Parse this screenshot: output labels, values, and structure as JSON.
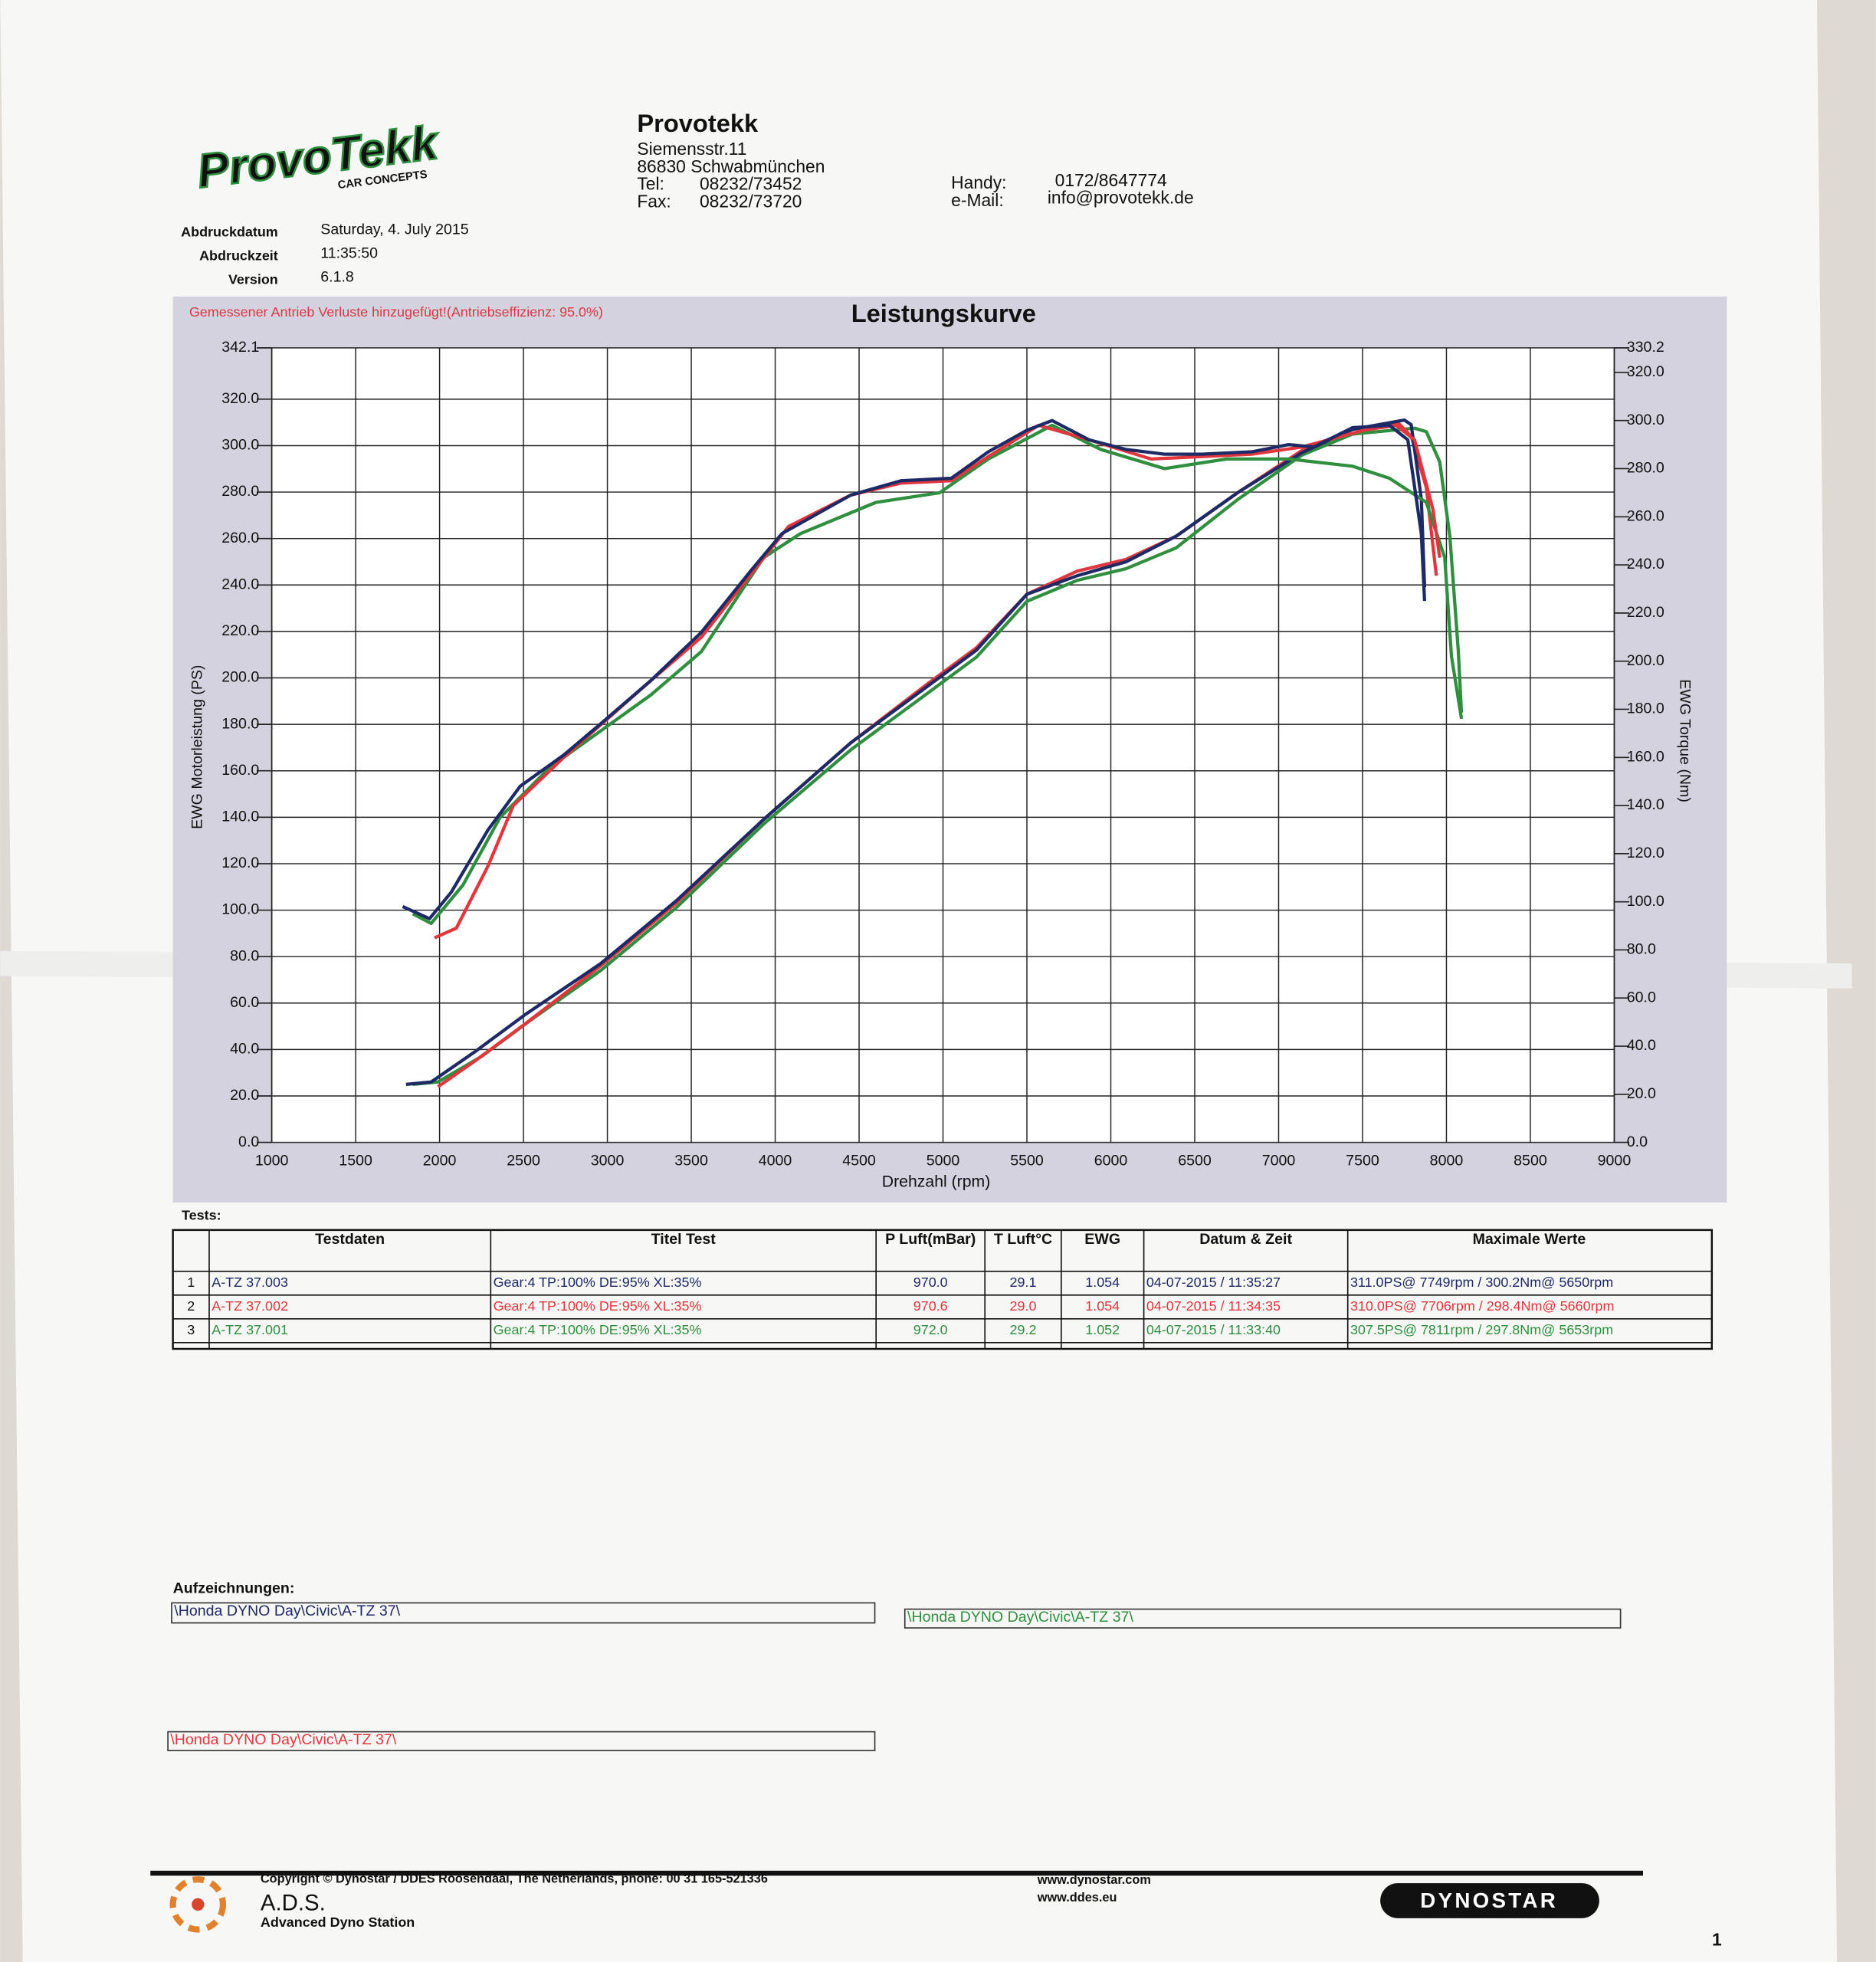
{
  "logo": {
    "text": "ProvoTekk",
    "subtitle": "CAR CONCEPTS"
  },
  "header": {
    "company": "Provotekk",
    "street": "Siemensstr.11",
    "city": "86830 Schwabmünchen",
    "tel_label": "Tel:",
    "tel": "08232/73452",
    "fax_label": "Fax:",
    "fax": "08232/73720",
    "handy_label": "Handy:",
    "handy": "0172/8647774",
    "email_label": "e-Mail:",
    "email": "info@provotekk.de"
  },
  "meta": [
    {
      "label": "Abdruckdatum",
      "value": "Saturday, 4. July 2015"
    },
    {
      "label": "Abdruckzeit",
      "value": "11:35:50"
    },
    {
      "label": "Version",
      "value": "6.1.8"
    }
  ],
  "chart_data": {
    "type": "line",
    "title": "Leistungskurve",
    "subtitle": "Gemessener Antrieb Verluste hinzugefügt!(Antriebseffizienz: 95.0%)",
    "x_label": "Drehzahl (rpm)",
    "y_label": "EWG Motorleistung (PS)",
    "y2_label": "EWG Torque (Nm)",
    "grid": true,
    "xlim": [
      1000,
      9000
    ],
    "xticks": [
      1000,
      1500,
      2000,
      2500,
      3000,
      3500,
      4000,
      4500,
      5000,
      5500,
      6000,
      6500,
      7000,
      7500,
      8000,
      8500,
      9000
    ],
    "ylim": [
      0,
      342.1
    ],
    "yticks": [
      {
        "value": 0,
        "label": "0.0"
      },
      {
        "value": 20,
        "label": "20.0"
      },
      {
        "value": 40,
        "label": "40.0"
      },
      {
        "value": 60,
        "label": "60.0"
      },
      {
        "value": 80,
        "label": "80.0"
      },
      {
        "value": 100,
        "label": "100.0"
      },
      {
        "value": 120,
        "label": "120.0"
      },
      {
        "value": 140,
        "label": "140.0"
      },
      {
        "value": 160,
        "label": "160.0"
      },
      {
        "value": 180,
        "label": "180.0"
      },
      {
        "value": 200,
        "label": "200.0"
      },
      {
        "value": 220,
        "label": "220.0"
      },
      {
        "value": 240,
        "label": "240.0"
      },
      {
        "value": 260,
        "label": "260.0"
      },
      {
        "value": 280,
        "label": "280.0"
      },
      {
        "value": 300,
        "label": "300.0"
      },
      {
        "value": 320,
        "label": "320.0"
      },
      342.1
    ],
    "y2lim": [
      0,
      330.2
    ],
    "y2ticks": [
      {
        "value": 0,
        "label": "0.0"
      },
      {
        "value": 20,
        "label": "20.0"
      },
      {
        "value": 40,
        "label": "40.0"
      },
      {
        "value": 60,
        "label": "60.0"
      },
      {
        "value": 80,
        "label": "80.0"
      },
      {
        "value": 100,
        "label": "100.0"
      },
      {
        "value": 120,
        "label": "120.0"
      },
      {
        "value": 140,
        "label": "140.0"
      },
      {
        "value": 160,
        "label": "160.0"
      },
      {
        "value": 180,
        "label": "180.0"
      },
      {
        "value": 200,
        "label": "200.0"
      },
      {
        "value": 220,
        "label": "220.0"
      },
      {
        "value": 240,
        "label": "240.0"
      },
      {
        "value": 260,
        "label": "260.0"
      },
      {
        "value": 280,
        "label": "280.0"
      },
      {
        "value": 300,
        "label": "300.0"
      },
      {
        "value": 320,
        "label": "320.0"
      },
      330.2
    ],
    "series": [
      {
        "color": "#1e2a66",
        "axis": "y2",
        "x": [
          1780,
          1940,
          2070,
          2290,
          2480,
          2740,
          2960,
          3260,
          3560,
          3860,
          4040,
          4450,
          4750,
          5050,
          5270,
          5500,
          5650,
          5870,
          6090,
          6320,
          6540,
          6840,
          7060,
          7210,
          7440,
          7660,
          7770,
          7850,
          7870
        ],
        "values": [
          98,
          93,
          104,
          130,
          148,
          161,
          174,
          192,
          212,
          238,
          253,
          269,
          275,
          276,
          287,
          296,
          300,
          292,
          288,
          286,
          286,
          287,
          290,
          289,
          297,
          298,
          292,
          253,
          225
        ]
      },
      {
        "color": "#e0373f",
        "axis": "y2",
        "x": [
          1970,
          2100,
          2290,
          2440,
          2740,
          3260,
          3560,
          4080,
          4450,
          4750,
          5050,
          5270,
          5570,
          5870,
          6240,
          6540,
          6840,
          7140,
          7510,
          7700,
          7810,
          7920,
          7960
        ],
        "values": [
          85,
          89,
          115,
          140,
          160,
          192,
          210,
          256,
          269,
          274,
          275,
          285,
          298,
          292,
          284,
          285,
          286,
          289,
          296,
          298,
          292,
          263,
          243
        ]
      },
      {
        "color": "#2f8f3f",
        "axis": "y2",
        "x": [
          1840,
          1950,
          2140,
          2360,
          2660,
          3260,
          3560,
          3930,
          4150,
          4600,
          4980,
          5270,
          5650,
          5940,
          6320,
          6690,
          7060,
          7440,
          7660,
          7880,
          7990,
          8030,
          8090
        ],
        "values": [
          95,
          91,
          107,
          135,
          156,
          186,
          204,
          243,
          253,
          266,
          270,
          284,
          298,
          288,
          280,
          284,
          284,
          281,
          276,
          266,
          243,
          202,
          176
        ]
      },
      {
        "color": "#1e2a66",
        "x": [
          1800,
          1950,
          2210,
          2510,
          2960,
          3410,
          3930,
          4450,
          4900,
          5200,
          5500,
          5800,
          6090,
          6390,
          6760,
          7140,
          7440,
          7750,
          7790,
          7850,
          7870
        ],
        "values": [
          25,
          26,
          39,
          55,
          77,
          104,
          139,
          172,
          196,
          212,
          236,
          244,
          250,
          261,
          280,
          297,
          307,
          311,
          309,
          277,
          239
        ]
      },
      {
        "color": "#e0373f",
        "x": [
          1990,
          2210,
          2510,
          2960,
          3410,
          3930,
          4450,
          4900,
          5200,
          5500,
          5800,
          6090,
          6390,
          6760,
          7140,
          7440,
          7710,
          7790,
          7880,
          7940
        ],
        "values": [
          24,
          35,
          51,
          76,
          103,
          139,
          172,
          197,
          213,
          236,
          246,
          251,
          261,
          280,
          298,
          307,
          310,
          304,
          282,
          244
        ]
      },
      {
        "color": "#2f8f3f",
        "x": [
          1840,
          1990,
          2250,
          2550,
          2960,
          3410,
          3930,
          4450,
          4900,
          5200,
          5500,
          5800,
          6090,
          6390,
          6760,
          7140,
          7440,
          7810,
          7880,
          7960,
          8020,
          8070,
          8090
        ],
        "values": [
          25,
          26,
          37,
          53,
          74,
          101,
          137,
          169,
          193,
          209,
          233,
          242,
          247,
          256,
          277,
          296,
          305,
          307.5,
          306,
          293,
          261,
          212,
          185
        ]
      }
    ]
  },
  "tests": {
    "label": "Tests:",
    "columns": [
      "Testdaten",
      "Titel Test",
      "P Luft(mBar)",
      "T Luft°C",
      "EWG",
      "Datum & Zeit",
      "Maximale Werte"
    ],
    "rows": [
      {
        "color": "#1e2a66",
        "cells": [
          "1",
          "A-TZ 37.003",
          "Gear:4 TP:100% DE:95% XL:35%",
          "970.0",
          "29.1",
          "1.054",
          "04-07-2015 / 11:35:27",
          "311.0PS@ 7749rpm / 300.2Nm@ 5650rpm"
        ]
      },
      {
        "color": "#e0373f",
        "cells": [
          "2",
          "A-TZ 37.002",
          "Gear:4 TP:100% DE:95% XL:35%",
          "970.6",
          "29.0",
          "1.054",
          "04-07-2015 / 11:34:35",
          "310.0PS@ 7706rpm / 298.4Nm@ 5660rpm"
        ]
      },
      {
        "color": "#2f8f3f",
        "cells": [
          "3",
          "A-TZ 37.001",
          "Gear:4 TP:100% DE:95% XL:35%",
          "972.0",
          "29.2",
          "1.052",
          "04-07-2015 / 11:33:40",
          "307.5PS@ 7811rpm / 297.8Nm@ 5653rpm"
        ]
      }
    ]
  },
  "recordings": {
    "label": "Aufzeichnungen:",
    "items": [
      {
        "color": "#1e2a66",
        "text": "\\Honda DYNO Day\\Civic\\A-TZ 37\\"
      },
      {
        "color": "#2f8f3f",
        "text": "\\Honda DYNO Day\\Civic\\A-TZ 37\\"
      },
      {
        "color": "#e0373f",
        "text": "\\Honda DYNO Day\\Civic\\A-TZ 37\\"
      }
    ]
  },
  "footer": {
    "copyright": "Copyright © Dynostar / DDES Roosendaal, The Netherlands, phone: 00 31 165-521336",
    "url1": "www.dynostar.com",
    "url2": "www.ddes.eu",
    "ads": "A.D.S.",
    "ads_sub": "Advanced Dyno Station",
    "brand": "DYNOSTAR",
    "page": "1"
  }
}
